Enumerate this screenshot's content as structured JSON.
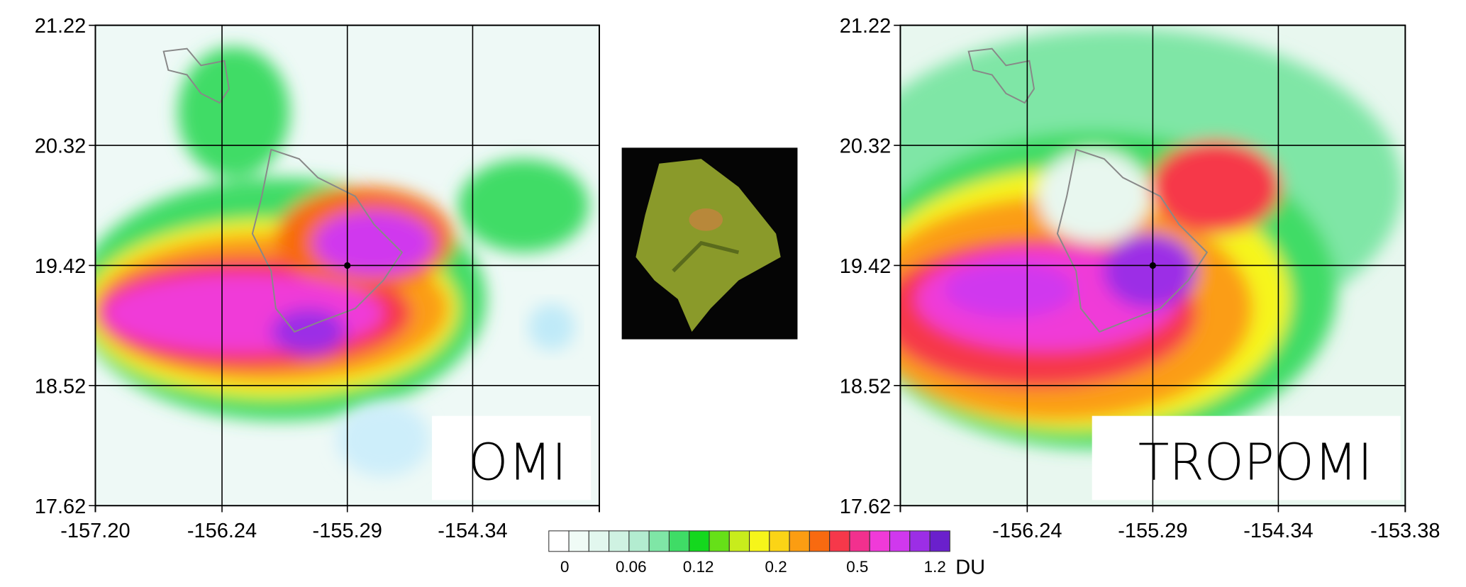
{
  "panels": [
    {
      "label": "OMI",
      "xlim": [
        -157.2,
        -153.38
      ],
      "ylim": [
        17.62,
        21.22
      ],
      "xticks": [
        {
          "value": -157.2,
          "label": "-157.20"
        },
        {
          "value": -156.24,
          "label": "-156.24"
        },
        {
          "value": -155.29,
          "label": "-155.29"
        },
        {
          "value": -154.34,
          "label": "-154.34"
        }
      ],
      "yticks": [
        17.62,
        18.52,
        19.42,
        20.32,
        21.22
      ]
    },
    {
      "label": "TROPOMI",
      "xlim": [
        -157.2,
        -153.38
      ],
      "ylim": [
        17.62,
        21.22
      ],
      "xticks": [
        {
          "value": -156.24,
          "label": "-156.24"
        },
        {
          "value": -155.29,
          "label": "-155.29"
        },
        {
          "value": -154.34,
          "label": "-154.34"
        },
        {
          "value": -153.38,
          "label": "-153.38"
        }
      ],
      "yticks": [
        17.62,
        18.52,
        19.42,
        20.32,
        21.22
      ]
    }
  ],
  "colorbar": {
    "colors": [
      "#ffffff",
      "#f0fbf6",
      "#e2f7ee",
      "#cff2e2",
      "#b3ecd0",
      "#7fe6a6",
      "#3fdc66",
      "#14d81e",
      "#66e018",
      "#c8ec1c",
      "#f6f51a",
      "#fbd416",
      "#fb9d12",
      "#f86a10",
      "#f6384a",
      "#f2308e",
      "#f03ad8",
      "#d038ee",
      "#9c2ee6",
      "#6a20cc"
    ],
    "labels": [
      "0",
      "0.06",
      "0.12",
      "0.2",
      "0.5",
      "1.2"
    ],
    "unit": "DU"
  }
}
